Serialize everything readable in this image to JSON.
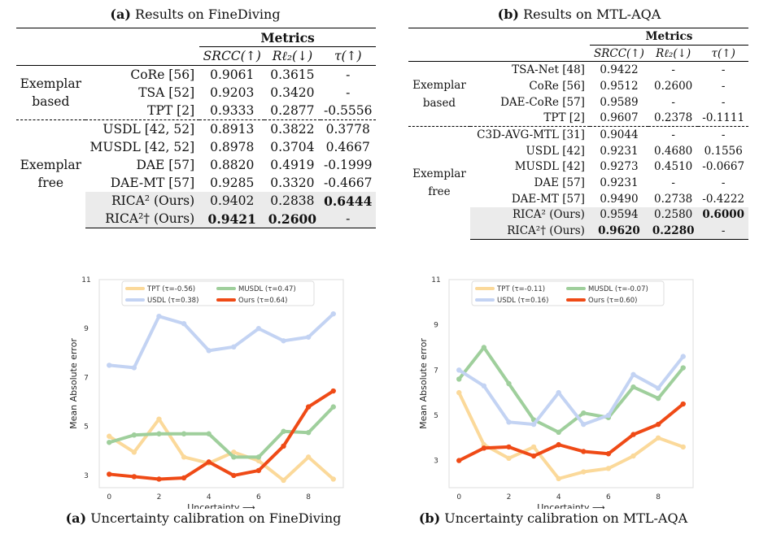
{
  "tables": [
    {
      "caption_label": "(a)",
      "caption_text": "Results on FineDiving",
      "metrics_header": "Metrics",
      "col_headers": [
        "SRCC(↑)",
        "Rℓ₂(↓)",
        "τ(↑)"
      ],
      "groups": [
        {
          "label_line1": "Exemplar",
          "label_line2": "based",
          "rows": [
            {
              "method": "CoRe [56]",
              "srcc": "0.9061",
              "rl2": "0.3615",
              "tau": "-"
            },
            {
              "method": "TSA [52]",
              "srcc": "0.9203",
              "rl2": "0.3420",
              "tau": "-"
            },
            {
              "method": "TPT [2]",
              "srcc": "0.9333",
              "rl2": "0.2877",
              "tau": "-0.5556"
            }
          ]
        },
        {
          "label_line1": "Exemplar",
          "label_line2": "free",
          "rows": [
            {
              "method": "USDL [42, 52]",
              "srcc": "0.8913",
              "rl2": "0.3822",
              "tau": "0.3778"
            },
            {
              "method": "MUSDL [42, 52]",
              "srcc": "0.8978",
              "rl2": "0.3704",
              "tau": "0.4667"
            },
            {
              "method": "DAE [57]",
              "srcc": "0.8820",
              "rl2": "0.4919",
              "tau": "-0.1999"
            },
            {
              "method": "DAE-MT [57]",
              "srcc": "0.9285",
              "rl2": "0.3320",
              "tau": "-0.4667"
            },
            {
              "method": "RICA² (Ours)",
              "srcc": "0.9402",
              "rl2": "0.2838",
              "tau": "0.6444",
              "highlight": true,
              "bold": [
                "tau"
              ]
            },
            {
              "method": "RICA²† (Ours)",
              "srcc": "0.9421",
              "rl2": "0.2600",
              "tau": "-",
              "highlight": true,
              "bold": [
                "srcc",
                "rl2"
              ]
            }
          ]
        }
      ]
    },
    {
      "caption_label": "(b)",
      "caption_text": "Results on MTL-AQA",
      "metrics_header": "Metrics",
      "col_headers": [
        "SRCC(↑)",
        "Rℓ₂(↓)",
        "τ(↑)"
      ],
      "groups": [
        {
          "label_line1": "Exemplar",
          "label_line2": "based",
          "rows": [
            {
              "method": "TSA-Net [48]",
              "srcc": "0.9422",
              "rl2": "-",
              "tau": "-"
            },
            {
              "method": "CoRe [56]",
              "srcc": "0.9512",
              "rl2": "0.2600",
              "tau": "-"
            },
            {
              "method": "DAE-CoRe [57]",
              "srcc": "0.9589",
              "rl2": "-",
              "tau": "-"
            },
            {
              "method": "TPT [2]",
              "srcc": "0.9607",
              "rl2": "0.2378",
              "tau": "-0.1111"
            }
          ]
        },
        {
          "label_line1": "Exemplar",
          "label_line2": "free",
          "rows": [
            {
              "method": "C3D-AVG-MTL [31]",
              "srcc": "0.9044",
              "rl2": "-",
              "tau": "-"
            },
            {
              "method": "USDL [42]",
              "srcc": "0.9231",
              "rl2": "0.4680",
              "tau": "0.1556"
            },
            {
              "method": "MUSDL [42]",
              "srcc": "0.9273",
              "rl2": "0.4510",
              "tau": "-0.0667"
            },
            {
              "method": "DAE [57]",
              "srcc": "0.9231",
              "rl2": "-",
              "tau": "-"
            },
            {
              "method": "DAE-MT [57]",
              "srcc": "0.9490",
              "rl2": "0.2738",
              "tau": "-0.4222"
            },
            {
              "method": "RICA² (Ours)",
              "srcc": "0.9594",
              "rl2": "0.2580",
              "tau": "0.6000",
              "highlight": true,
              "bold": [
                "tau"
              ]
            },
            {
              "method": "RICA²† (Ours)",
              "srcc": "0.9620",
              "rl2": "0.2280",
              "tau": "-",
              "highlight": true,
              "bold": [
                "srcc",
                "rl2"
              ]
            }
          ]
        }
      ]
    }
  ],
  "chart_data": [
    {
      "type": "line",
      "caption_label": "(a)",
      "caption_text": "Uncertainty calibration on FineDiving",
      "xlabel": "Uncertainty ⟶",
      "ylabel": "Mean Absolute error",
      "x": [
        0,
        1,
        2,
        3,
        4,
        5,
        6,
        7,
        8,
        9
      ],
      "xticks": [
        "0",
        "2",
        "4",
        "6",
        "8"
      ],
      "yticks": [
        "3",
        "5",
        "7",
        "9",
        "11"
      ],
      "ylim": [
        2.5,
        11
      ],
      "xlim": [
        -0.4,
        9.4
      ],
      "legend_position": "top",
      "series": [
        {
          "name": "TPT (τ=-0.56)",
          "color": "#fbd99a",
          "values": [
            4.6,
            3.95,
            5.3,
            3.75,
            3.5,
            3.95,
            3.6,
            2.8,
            3.75,
            2.85
          ]
        },
        {
          "name": "MUSDL (τ=0.47)",
          "color": "#9fcf9c",
          "values": [
            4.35,
            4.65,
            4.7,
            4.7,
            4.7,
            3.75,
            3.75,
            4.8,
            4.75,
            5.8
          ]
        },
        {
          "name": "USDL (τ=0.38)",
          "color": "#c3d3f3",
          "values": [
            7.5,
            7.4,
            9.5,
            9.2,
            8.1,
            8.25,
            9.0,
            8.5,
            8.65,
            9.6
          ]
        },
        {
          "name": "Ours (τ=0.64)",
          "color": "#ef4a16",
          "values": [
            3.05,
            2.95,
            2.85,
            2.9,
            3.55,
            3.0,
            3.2,
            4.2,
            5.8,
            6.45
          ]
        }
      ]
    },
    {
      "type": "line",
      "caption_label": "(b)",
      "caption_text": "Uncertainty calibration on MTL-AQA",
      "xlabel": "Uncertainty ⟶",
      "ylabel": "Mean Absolute error",
      "x": [
        0,
        1,
        2,
        3,
        4,
        5,
        6,
        7,
        8,
        9
      ],
      "xticks": [
        "0",
        "2",
        "4",
        "6",
        "8"
      ],
      "yticks": [
        "3",
        "5",
        "7",
        "9",
        "11"
      ],
      "ylim": [
        1.8,
        11
      ],
      "xlim": [
        -0.4,
        9.4
      ],
      "legend_position": "top",
      "series": [
        {
          "name": "TPT (τ=-0.11)",
          "color": "#fbd99a",
          "values": [
            6.0,
            3.7,
            3.1,
            3.6,
            2.2,
            2.5,
            2.65,
            3.2,
            4.0,
            3.6
          ]
        },
        {
          "name": "MUSDL (τ=-0.07)",
          "color": "#9fcf9c",
          "values": [
            6.6,
            8.0,
            6.4,
            4.8,
            4.25,
            5.1,
            4.9,
            6.25,
            5.75,
            7.1
          ]
        },
        {
          "name": "USDL (τ=0.16)",
          "color": "#c3d3f3",
          "values": [
            7.0,
            6.3,
            4.7,
            4.6,
            6.0,
            4.6,
            5.0,
            6.8,
            6.2,
            7.6
          ]
        },
        {
          "name": "Ours (τ=0.60)",
          "color": "#ef4a16",
          "values": [
            3.0,
            3.55,
            3.6,
            3.2,
            3.7,
            3.4,
            3.3,
            4.15,
            4.6,
            5.5
          ]
        }
      ]
    }
  ]
}
